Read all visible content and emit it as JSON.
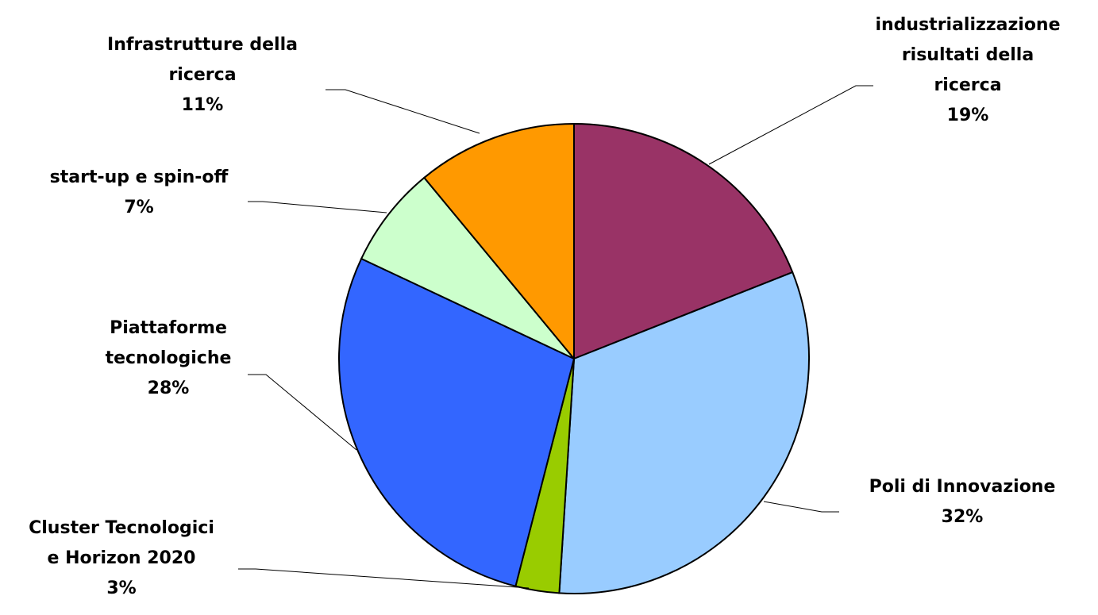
{
  "chart_data": {
    "type": "pie",
    "start_angle": "12 o'clock",
    "direction": "clockwise",
    "slices": [
      {
        "label_lines": [
          "industrializzazione",
          "risultati della",
          "ricerca"
        ],
        "percent_label": "19%",
        "value": 19,
        "color": "#993366"
      },
      {
        "label_lines": [
          "Poli di Innovazione"
        ],
        "percent_label": "32%",
        "value": 32,
        "color": "#99CCFF"
      },
      {
        "label_lines": [
          "Cluster Tecnologici",
          "e Horizon 2020"
        ],
        "percent_label": "3%",
        "value": 3,
        "color": "#99CC00"
      },
      {
        "label_lines": [
          "Piattaforme",
          "tecnologiche"
        ],
        "percent_label": "28%",
        "value": 28,
        "color": "#3366FF"
      },
      {
        "label_lines": [
          "start-up e spin-off"
        ],
        "percent_label": "7%",
        "value": 7,
        "color": "#CCFFCC"
      },
      {
        "label_lines": [
          "Infrastrutture della",
          "ricerca"
        ],
        "percent_label": "11%",
        "value": 11,
        "color": "#FF9900"
      }
    ]
  }
}
